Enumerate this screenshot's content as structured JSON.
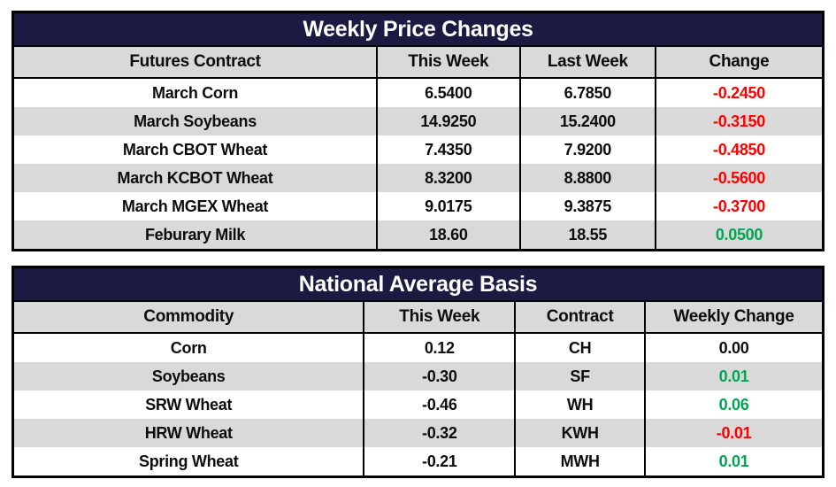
{
  "colors": {
    "title_bar": "#1b1a43",
    "title_text": "#ffffff",
    "header_bg": "#d9d9d9",
    "row_bg": "#ffffff",
    "row_alt_bg": "#d9d9d9",
    "border": "#000000",
    "neutral": "#0d0d0d",
    "positive": "#00a650",
    "negative": "#fe0000"
  },
  "chart_data": [
    {
      "type": "table",
      "title": "Weekly Price Changes",
      "columns": [
        "Futures Contract",
        "This Week",
        "Last Week",
        "Change"
      ],
      "rows": [
        [
          "March Corn",
          "6.5400",
          "6.7850",
          "-0.2450"
        ],
        [
          "March Soybeans",
          "14.9250",
          "15.2400",
          "-0.3150"
        ],
        [
          "March CBOT Wheat",
          "7.4350",
          "7.9200",
          "-0.4850"
        ],
        [
          "March KCBOT Wheat",
          "8.3200",
          "8.8800",
          "-0.5600"
        ],
        [
          "March MGEX Wheat",
          "9.0175",
          "9.3875",
          "-0.3700"
        ],
        [
          "Feburary Milk",
          "18.60",
          "18.55",
          "0.0500"
        ]
      ],
      "last_col_colors": [
        "negative",
        "negative",
        "negative",
        "negative",
        "negative",
        "positive"
      ]
    },
    {
      "type": "table",
      "title": "National Average Basis",
      "columns": [
        "Commodity",
        "This Week",
        "Contract",
        "Weekly Change"
      ],
      "rows": [
        [
          "Corn",
          "0.12",
          "CH",
          "0.00"
        ],
        [
          "Soybeans",
          "-0.30",
          "SF",
          "0.01"
        ],
        [
          "SRW Wheat",
          "-0.46",
          "WH",
          "0.06"
        ],
        [
          "HRW Wheat",
          "-0.32",
          "KWH",
          "-0.01"
        ],
        [
          "Spring Wheat",
          "-0.21",
          "MWH",
          "0.01"
        ]
      ],
      "last_col_colors": [
        "neutral",
        "positive",
        "positive",
        "negative",
        "positive"
      ]
    }
  ]
}
